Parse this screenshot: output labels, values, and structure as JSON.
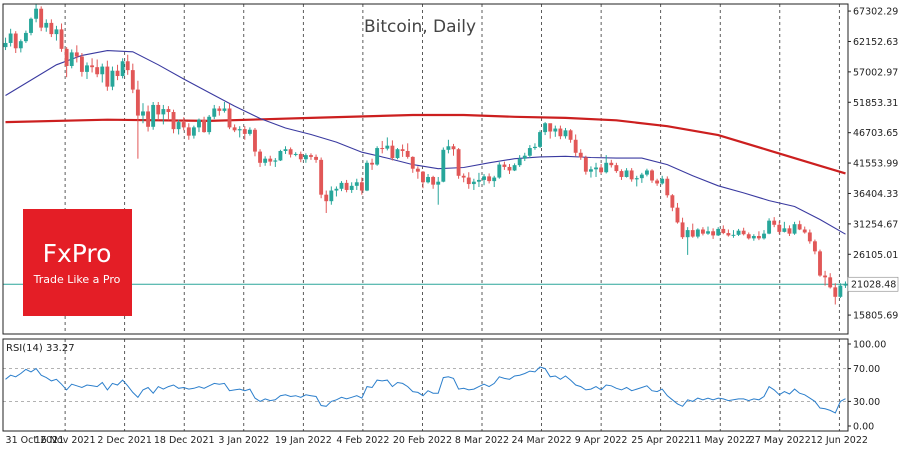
{
  "brand": {
    "logo_text": "FxPro",
    "tagline": "Trade Like a Pro",
    "color": "#e41e26"
  },
  "chart_data": {
    "type": "line",
    "title": "Bitcoin, Daily",
    "colors": {
      "bull": "#27a69a",
      "bear": "#e15757",
      "ma_fast": "#3a3aa0",
      "ma_slow": "#cc1f1f",
      "rsi": "#2c7fcc",
      "current_line": "#2ca59a",
      "grid": "#333333"
    },
    "x_tick_labels": [
      "31 Oct 2021",
      "16 Nov 2021",
      "2 Dec 2021",
      "18 Dec 2021",
      "3 Jan 2022",
      "19 Jan 2022",
      "4 Feb 2022",
      "20 Feb 2022",
      "8 Mar 2022",
      "24 Mar 2022",
      "9 Apr 2022",
      "25 Apr 2022",
      "11 May 2022",
      "27 May 2022",
      "12 Jun 2022"
    ],
    "y_tick_labels": [
      "67302.29",
      "62152.63",
      "57002.97",
      "51853.31",
      "46703.65",
      "41553.99",
      "36404.33",
      "31254.67",
      "26105.01",
      "15805.69"
    ],
    "ylim": [
      12600,
      68500
    ],
    "current_price": 21028.48,
    "current_price_label": "21028.48",
    "candles": [
      [
        0,
        61200,
        62800,
        60700,
        61900
      ],
      [
        1,
        61900,
        64300,
        61300,
        63500
      ],
      [
        2,
        63500,
        63900,
        60200,
        61000
      ],
      [
        3,
        61000,
        62500,
        60300,
        62200
      ],
      [
        4,
        62200,
        64000,
        61900,
        63600
      ],
      [
        5,
        63600,
        66200,
        63200,
        66000
      ],
      [
        6,
        66000,
        68500,
        65400,
        67700
      ],
      [
        7,
        67700,
        68100,
        63900,
        64500
      ],
      [
        8,
        64500,
        65900,
        63800,
        65300
      ],
      [
        9,
        65300,
        65900,
        62900,
        63400
      ],
      [
        10,
        63400,
        64800,
        62300,
        64200
      ],
      [
        11,
        64200,
        65200,
        60400,
        60900
      ],
      [
        12,
        60900,
        61200,
        56100,
        58000
      ],
      [
        13,
        58000,
        60800,
        57600,
        60300
      ],
      [
        14,
        60300,
        61500,
        58600,
        59600
      ],
      [
        15,
        59600,
        60200,
        56200,
        57000
      ],
      [
        16,
        57000,
        58600,
        55800,
        58100
      ],
      [
        17,
        58100,
        59300,
        56900,
        57800
      ],
      [
        18,
        57800,
        59100,
        56100,
        56600
      ],
      [
        19,
        56600,
        58400,
        55200,
        57900
      ],
      [
        20,
        57900,
        58900,
        53800,
        54500
      ],
      [
        21,
        54500,
        57900,
        53900,
        57200
      ],
      [
        22,
        57200,
        58200,
        55600,
        56300
      ],
      [
        23,
        56300,
        59300,
        55900,
        58800
      ],
      [
        24,
        58800,
        59900,
        56500,
        57300
      ],
      [
        25,
        57300,
        58400,
        53400,
        54000
      ],
      [
        26,
        54000,
        55500,
        42300,
        49600
      ],
      [
        27,
        49600,
        51700,
        48300,
        50300
      ],
      [
        28,
        50300,
        51300,
        46900,
        47700
      ],
      [
        29,
        47700,
        51900,
        47200,
        51400
      ],
      [
        30,
        51400,
        51900,
        48800,
        49800
      ],
      [
        31,
        49800,
        51400,
        48100,
        50700
      ],
      [
        32,
        50700,
        51200,
        48800,
        50200
      ],
      [
        33,
        50200,
        50600,
        46600,
        47300
      ],
      [
        34,
        47300,
        48900,
        46400,
        48500
      ],
      [
        35,
        48500,
        49300,
        47100,
        47600
      ],
      [
        36,
        47600,
        48300,
        45500,
        46200
      ],
      [
        37,
        46200,
        47900,
        45700,
        47600
      ],
      [
        38,
        47600,
        49100,
        46800,
        48900
      ],
      [
        39,
        48900,
        49400,
        46700,
        46800
      ],
      [
        40,
        46800,
        49700,
        46400,
        49400
      ],
      [
        41,
        49400,
        51400,
        49000,
        50800
      ],
      [
        42,
        50800,
        51200,
        49600,
        50400
      ],
      [
        43,
        50400,
        51900,
        50100,
        50800
      ],
      [
        44,
        50800,
        51600,
        47300,
        47600
      ],
      [
        45,
        47600,
        48100,
        46800,
        47100
      ],
      [
        46,
        47100,
        47800,
        45900,
        47300
      ],
      [
        47,
        47300,
        47800,
        45500,
        46500
      ],
      [
        48,
        46500,
        47600,
        46200,
        47200
      ],
      [
        49,
        47200,
        47500,
        42700,
        43500
      ],
      [
        50,
        43500,
        43900,
        40900,
        41600
      ],
      [
        51,
        41600,
        42700,
        41100,
        42300
      ],
      [
        52,
        42300,
        42800,
        41100,
        41800
      ],
      [
        53,
        41800,
        42400,
        40900,
        42000
      ],
      [
        54,
        42000,
        43800,
        41900,
        43600
      ],
      [
        55,
        43600,
        44400,
        43100,
        43900
      ],
      [
        56,
        43900,
        44200,
        42500,
        43000
      ],
      [
        57,
        43000,
        43400,
        42700,
        43100
      ],
      [
        58,
        43100,
        43500,
        41700,
        42200
      ],
      [
        59,
        42200,
        43200,
        41600,
        42900
      ],
      [
        60,
        42900,
        43200,
        42100,
        42600
      ],
      [
        61,
        42600,
        43000,
        41600,
        42100
      ],
      [
        62,
        42100,
        42500,
        35600,
        36200
      ],
      [
        63,
        36200,
        36900,
        33100,
        35100
      ],
      [
        64,
        35100,
        37600,
        34500,
        36900
      ],
      [
        65,
        36900,
        37600,
        35900,
        37200
      ],
      [
        66,
        37200,
        38500,
        36800,
        38200
      ],
      [
        67,
        38200,
        38700,
        36600,
        37000
      ],
      [
        68,
        37000,
        38300,
        36500,
        37700
      ],
      [
        69,
        37700,
        38900,
        37000,
        38300
      ],
      [
        70,
        38300,
        39100,
        36200,
        36900
      ],
      [
        71,
        36900,
        42000,
        36800,
        41600
      ],
      [
        72,
        41600,
        42300,
        40400,
        41300
      ],
      [
        73,
        41300,
        44400,
        41100,
        44100
      ],
      [
        74,
        44100,
        45300,
        43200,
        44000
      ],
      [
        75,
        44000,
        45900,
        43700,
        44500
      ],
      [
        76,
        44500,
        45400,
        42000,
        42400
      ],
      [
        77,
        42400,
        44100,
        42200,
        43900
      ],
      [
        78,
        43900,
        44700,
        42600,
        43600
      ],
      [
        79,
        43600,
        44900,
        42300,
        42600
      ],
      [
        80,
        42600,
        42700,
        39900,
        40600
      ],
      [
        81,
        40600,
        41000,
        38900,
        40100
      ],
      [
        82,
        40100,
        40200,
        37300,
        38300
      ],
      [
        83,
        38300,
        39700,
        38100,
        39200
      ],
      [
        84,
        39200,
        39400,
        37200,
        37900
      ],
      [
        85,
        37900,
        39200,
        34500,
        38400
      ],
      [
        86,
        38400,
        44200,
        38300,
        43800
      ],
      [
        87,
        43800,
        45500,
        43200,
        44400
      ],
      [
        88,
        44400,
        44800,
        42800,
        43900
      ],
      [
        89,
        43900,
        44100,
        38900,
        39400
      ],
      [
        90,
        39400,
        39800,
        38300,
        39100
      ],
      [
        91,
        39100,
        40000,
        37200,
        38000
      ],
      [
        92,
        38000,
        38900,
        37000,
        38400
      ],
      [
        93,
        38400,
        39900,
        37500,
        38700
      ],
      [
        94,
        38700,
        39700,
        37800,
        39300
      ],
      [
        95,
        39300,
        39800,
        38100,
        38500
      ],
      [
        96,
        38500,
        39400,
        37500,
        39100
      ],
      [
        97,
        39100,
        41700,
        38900,
        41300
      ],
      [
        98,
        41300,
        41800,
        40400,
        40900
      ],
      [
        99,
        40900,
        41400,
        39700,
        40300
      ],
      [
        100,
        40300,
        41500,
        40200,
        41200
      ],
      [
        101,
        41200,
        42900,
        40900,
        42300
      ],
      [
        102,
        42300,
        43300,
        41900,
        42800
      ],
      [
        103,
        42800,
        44600,
        42400,
        44100
      ],
      [
        104,
        44100,
        44900,
        43800,
        44300
      ],
      [
        105,
        44300,
        47100,
        44100,
        46800
      ],
      [
        106,
        46800,
        48500,
        46300,
        48300
      ],
      [
        107,
        48300,
        48200,
        45700,
        46900
      ],
      [
        108,
        46900,
        47900,
        46000,
        47400
      ],
      [
        109,
        47400,
        47900,
        45600,
        46100
      ],
      [
        110,
        46100,
        47500,
        45700,
        47100
      ],
      [
        111,
        47100,
        47300,
        45000,
        45500
      ],
      [
        112,
        45500,
        46400,
        42700,
        43300
      ],
      [
        113,
        43300,
        43900,
        42100,
        42500
      ],
      [
        114,
        42500,
        42800,
        39600,
        40100
      ],
      [
        115,
        40100,
        41000,
        39100,
        40500
      ],
      [
        116,
        40500,
        41600,
        39200,
        40800
      ],
      [
        117,
        40800,
        41400,
        39700,
        40000
      ],
      [
        118,
        40000,
        42900,
        39800,
        41600
      ],
      [
        119,
        41600,
        42100,
        40800,
        41200
      ],
      [
        120,
        41200,
        41600,
        39900,
        40200
      ],
      [
        121,
        40200,
        40500,
        38700,
        39200
      ],
      [
        122,
        39200,
        40700,
        39100,
        40300
      ],
      [
        123,
        40300,
        40700,
        38400,
        38800
      ],
      [
        124,
        38800,
        39400,
        37600,
        39000
      ],
      [
        125,
        39000,
        39900,
        38200,
        39600
      ],
      [
        126,
        39600,
        40600,
        39300,
        40300
      ],
      [
        127,
        40300,
        40500,
        38200,
        38600
      ],
      [
        128,
        38600,
        38900,
        37700,
        38100
      ],
      [
        129,
        38100,
        39400,
        37900,
        38900
      ],
      [
        130,
        38900,
        39300,
        35700,
        36100
      ],
      [
        131,
        36100,
        36300,
        33400,
        34000
      ],
      [
        132,
        34000,
        34800,
        31300,
        31500
      ],
      [
        133,
        31500,
        32300,
        28700,
        29000
      ],
      [
        134,
        29000,
        30700,
        26000,
        30200
      ],
      [
        135,
        30200,
        31300,
        28900,
        29100
      ],
      [
        136,
        29100,
        30500,
        28800,
        30300
      ],
      [
        137,
        30300,
        30700,
        29300,
        29600
      ],
      [
        138,
        29600,
        30800,
        29400,
        30000
      ],
      [
        139,
        30000,
        30500,
        28700,
        29300
      ],
      [
        140,
        29300,
        30700,
        29200,
        30400
      ],
      [
        141,
        30400,
        31000,
        29500,
        29700
      ],
      [
        142,
        29700,
        30300,
        29100,
        29300
      ],
      [
        143,
        29300,
        30200,
        28900,
        29400
      ],
      [
        144,
        29400,
        30400,
        29200,
        30100
      ],
      [
        145,
        30100,
        30600,
        29300,
        29500
      ],
      [
        146,
        29500,
        29800,
        28600,
        28800
      ],
      [
        147,
        28800,
        29500,
        28400,
        29200
      ],
      [
        148,
        29200,
        30000,
        28500,
        28800
      ],
      [
        149,
        28800,
        30200,
        28600,
        29600
      ],
      [
        150,
        29600,
        32200,
        29500,
        31800
      ],
      [
        151,
        31800,
        32400,
        30700,
        31100
      ],
      [
        152,
        31100,
        31700,
        29500,
        29900
      ],
      [
        153,
        29900,
        31600,
        29800,
        30500
      ],
      [
        154,
        30500,
        31000,
        29200,
        29600
      ],
      [
        155,
        29600,
        31600,
        29400,
        31200
      ],
      [
        156,
        31200,
        31800,
        30200,
        30300
      ],
      [
        157,
        30300,
        30800,
        29600,
        29800
      ],
      [
        158,
        29800,
        30300,
        27900,
        28300
      ],
      [
        159,
        28300,
        28600,
        26100,
        26600
      ],
      [
        160,
        26600,
        26900,
        22300,
        22500
      ],
      [
        161,
        22500,
        23300,
        20800,
        22200
      ],
      [
        162,
        22200,
        22900,
        20300,
        20500
      ],
      [
        163,
        20500,
        21200,
        17600,
        18900
      ],
      [
        164,
        18900,
        21200,
        18700,
        20800
      ],
      [
        165,
        20800,
        21500,
        20400,
        21100
      ]
    ],
    "ma_fast_points": [
      [
        0,
        53000
      ],
      [
        10,
        58200
      ],
      [
        15,
        59800
      ],
      [
        20,
        60600
      ],
      [
        25,
        60400
      ],
      [
        30,
        58200
      ],
      [
        35,
        55800
      ],
      [
        40,
        53500
      ],
      [
        45,
        51200
      ],
      [
        50,
        49100
      ],
      [
        55,
        47500
      ],
      [
        60,
        46400
      ],
      [
        65,
        45100
      ],
      [
        70,
        43400
      ],
      [
        75,
        42400
      ],
      [
        80,
        41300
      ],
      [
        85,
        40600
      ],
      [
        90,
        40800
      ],
      [
        95,
        41600
      ],
      [
        100,
        42300
      ],
      [
        105,
        42600
      ],
      [
        110,
        42700
      ],
      [
        115,
        42500
      ],
      [
        120,
        42400
      ],
      [
        125,
        42400
      ],
      [
        130,
        41300
      ],
      [
        135,
        39400
      ],
      [
        140,
        37700
      ],
      [
        145,
        36500
      ],
      [
        150,
        35200
      ],
      [
        155,
        34200
      ],
      [
        160,
        32000
      ],
      [
        165,
        29500
      ]
    ],
    "ma_slow_points": [
      [
        0,
        48500
      ],
      [
        20,
        48900
      ],
      [
        40,
        48700
      ],
      [
        60,
        49200
      ],
      [
        80,
        49700
      ],
      [
        90,
        49700
      ],
      [
        100,
        49400
      ],
      [
        110,
        49200
      ],
      [
        120,
        48800
      ],
      [
        130,
        47800
      ],
      [
        140,
        46300
      ],
      [
        150,
        43700
      ],
      [
        160,
        41100
      ],
      [
        165,
        39800
      ]
    ],
    "rsi_label": "RSI(14) 33.27",
    "rsi_ticks": [
      "100.00",
      "70.00",
      "30.00",
      "0.00"
    ],
    "rsi_values": [
      57,
      62,
      60,
      64,
      69,
      66,
      70,
      62,
      59,
      55,
      57,
      51,
      44,
      51,
      49,
      47,
      50,
      49,
      48,
      53,
      44,
      52,
      50,
      56,
      49,
      41,
      35,
      44,
      47,
      40,
      48,
      45,
      48,
      50,
      46,
      47,
      45,
      46,
      48,
      46,
      49,
      52,
      51,
      52,
      43,
      44,
      45,
      43,
      45,
      34,
      30,
      33,
      31,
      32,
      37,
      38,
      36,
      37,
      35,
      38,
      37,
      36,
      25,
      24,
      30,
      32,
      35,
      33,
      35,
      37,
      34,
      48,
      47,
      56,
      55,
      56,
      48,
      53,
      52,
      48,
      42,
      41,
      37,
      43,
      40,
      40,
      59,
      60,
      58,
      45,
      46,
      44,
      45,
      48,
      51,
      48,
      52,
      60,
      58,
      57,
      61,
      62,
      64,
      67,
      66,
      72,
      70,
      60,
      61,
      57,
      61,
      56,
      50,
      48,
      44,
      45,
      48,
      44,
      50,
      49,
      46,
      44,
      47,
      43,
      45,
      47,
      49,
      43,
      42,
      45,
      37,
      32,
      27,
      24,
      32,
      30,
      34,
      32,
      34,
      32,
      34,
      33,
      31,
      32,
      33,
      33,
      31,
      33,
      32,
      36,
      48,
      44,
      38,
      42,
      39,
      45,
      40,
      38,
      34,
      30,
      22,
      21,
      19,
      16,
      30,
      33.27
    ]
  }
}
